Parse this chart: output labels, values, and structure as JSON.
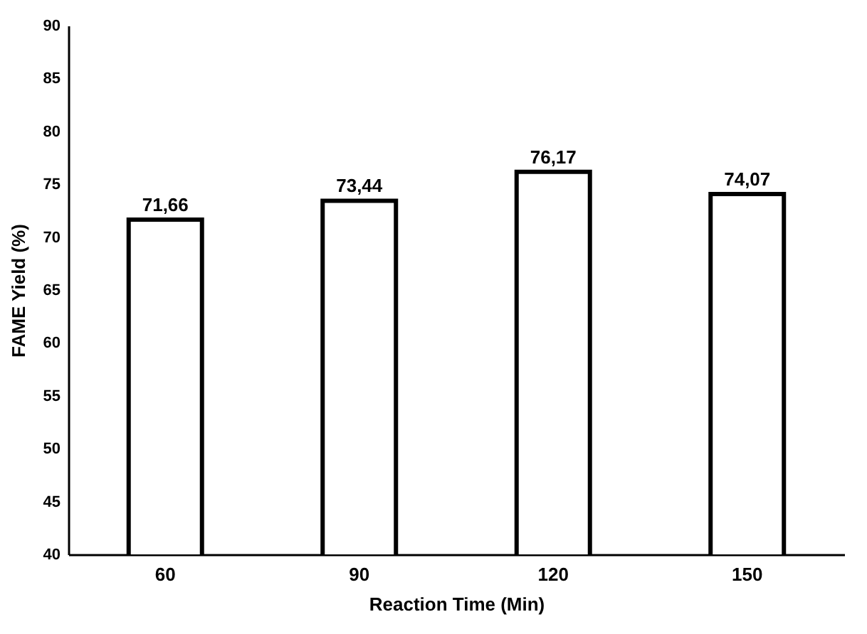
{
  "chart_data": {
    "type": "bar",
    "xlabel": "Reaction Time (Min)",
    "ylabel": "FAME Yield (%)",
    "categories": [
      "60",
      "90",
      "120",
      "150"
    ],
    "values": [
      71.66,
      73.44,
      76.17,
      74.07
    ],
    "value_labels": [
      "71,66",
      "73,44",
      "76,17",
      "74,07"
    ],
    "color": "#ffffff",
    "ylim": [
      40,
      90
    ],
    "yticks": [
      40,
      45,
      50,
      55,
      60,
      65,
      70,
      75,
      80,
      85,
      90
    ],
    "grid": false
  }
}
